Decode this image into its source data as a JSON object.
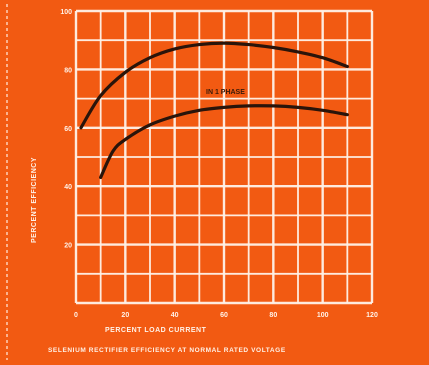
{
  "chart_data": {
    "type": "line",
    "title": "",
    "caption": "SELENIUM RECTIFIER EFFICIENCY AT NORMAL RATED VOLTAGE",
    "xlabel": "PERCENT LOAD CURRENT",
    "ylabel": "PERCENT EFFICIENCY",
    "xlim": [
      0,
      120
    ],
    "ylim": [
      0,
      100
    ],
    "x_ticks": [
      "0",
      "20",
      "40",
      "60",
      "80",
      "100",
      "120"
    ],
    "y_ticks": [
      "20",
      "40",
      "60",
      "80",
      "100"
    ],
    "grid": true,
    "annotation": "IN 1 PHASE",
    "series": [
      {
        "name": "",
        "x": [
          2,
          10,
          20,
          30,
          40,
          50,
          60,
          70,
          80,
          90,
          100,
          110
        ],
        "y": [
          60,
          71,
          79,
          84,
          87,
          88.5,
          89,
          88.5,
          87.5,
          86,
          84,
          81
        ]
      },
      {
        "name": "",
        "x": [
          10,
          15,
          20,
          30,
          40,
          50,
          60,
          70,
          80,
          90,
          100,
          110
        ],
        "y": [
          43,
          52,
          56,
          61,
          64,
          66,
          67,
          67.5,
          67.5,
          67,
          66,
          64.5
        ]
      }
    ],
    "colors": {
      "background": "#f25a12",
      "grid": "#fff2e8",
      "curve": "#2a140a"
    }
  }
}
